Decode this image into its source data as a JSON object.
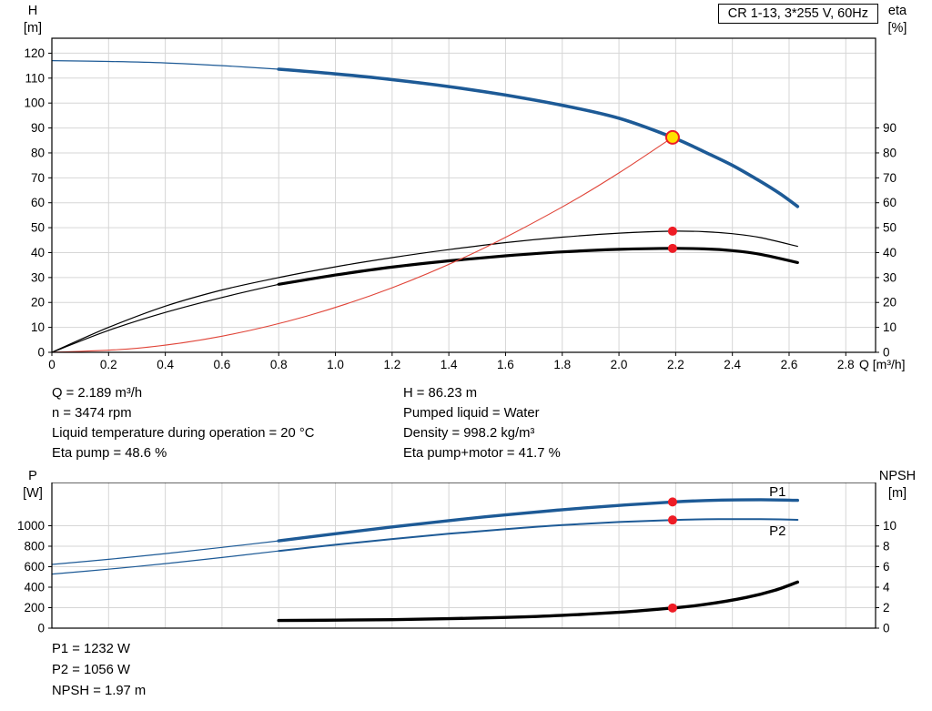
{
  "title_box": {
    "label": "CR 1-13, 3*255 V, 60Hz"
  },
  "x_axis_label": "Q [m³/h]",
  "axis_titles": {
    "top_left": [
      "H",
      "[m]"
    ],
    "top_right": [
      "eta",
      "[%]"
    ],
    "bottom_left": [
      "P",
      "[W]"
    ],
    "bottom_right": [
      "NPSH",
      "[m]"
    ]
  },
  "info_block": {
    "left": [
      "Q = 2.189 m³/h",
      "n = 3474 rpm",
      "Liquid temperature during operation = 20 °C",
      "Eta pump = 48.6 %"
    ],
    "right": [
      "H = 86.23 m",
      "Pumped liquid = Water",
      "Density = 998.2 kg/m³",
      "Eta pump+motor = 41.7 %"
    ]
  },
  "results_block": [
    "P1 = 1232 W",
    "P2 = 1056 W",
    "NPSH = 1.97 m"
  ],
  "colors": {
    "curve_blue": "#1d5a96",
    "curve_black": "#000000",
    "curve_red": "#e04438",
    "marker_red": "#ee1c25",
    "marker_yellow": "#ffe000",
    "grid": "#d6d6d6"
  },
  "chart_data": [
    {
      "type": "line",
      "title": "CR 1-13, 3*255 V, 60Hz",
      "xlabel": "Q [m³/h]",
      "ylabel_left": "H [m]",
      "ylabel_right": "eta [%]",
      "x_range": [
        0,
        2.905
      ],
      "y_range": [
        0,
        126
      ],
      "x_tick_values": [
        0,
        0.2,
        0.4,
        0.6,
        0.8,
        1.0,
        1.2,
        1.4,
        1.6,
        1.8,
        2.0,
        2.2,
        2.4,
        2.6,
        2.8
      ],
      "x_tick_labels": [
        "0",
        "0.2",
        "0.4",
        "0.6",
        "0.8",
        "1.0",
        "1.2",
        "1.4",
        "1.6",
        "1.8",
        "2.0",
        "2.2",
        "2.4",
        "2.6",
        "2.8"
      ],
      "y_tick_values_left": [
        0,
        10,
        20,
        30,
        40,
        50,
        60,
        70,
        80,
        90,
        100,
        110,
        120
      ],
      "y_tick_labels_left": [
        "0",
        "10",
        "20",
        "30",
        "40",
        "50",
        "60",
        "70",
        "80",
        "90",
        "100",
        "110",
        "120"
      ],
      "right_tick_values": [
        0,
        10,
        20,
        30,
        40,
        50,
        60,
        70,
        80,
        90
      ],
      "right_tick_labels": [
        "0",
        "10",
        "20",
        "30",
        "40",
        "50",
        "60",
        "70",
        "80",
        "90"
      ],
      "series": [
        {
          "name": "eta-pump-curve",
          "color": "#000000",
          "width": 1.2,
          "x": [
            0,
            0.2,
            0.4,
            0.6,
            0.8,
            1.0,
            1.2,
            1.4,
            1.6,
            1.8,
            2.0,
            2.189,
            2.3,
            2.4,
            2.5,
            2.63
          ],
          "y": [
            0,
            10,
            18.5,
            25,
            30,
            34.3,
            38,
            41.2,
            44,
            46.2,
            47.8,
            48.6,
            48.4,
            47.6,
            46,
            42.5
          ]
        },
        {
          "name": "eta-pump-motor-curve-thin",
          "color": "#000000",
          "width": 1.2,
          "x": [
            0,
            0.2,
            0.4,
            0.6,
            0.8
          ],
          "y": [
            0,
            8.8,
            16,
            22,
            27.3
          ]
        },
        {
          "name": "eta-pump-motor-curve",
          "color": "#000000",
          "width": 3.2,
          "x": [
            0.8,
            1.0,
            1.2,
            1.4,
            1.6,
            1.8,
            2.0,
            2.189,
            2.3,
            2.4,
            2.5,
            2.63
          ],
          "y": [
            27.3,
            31,
            34.2,
            36.7,
            38.7,
            40.3,
            41.3,
            41.7,
            41.5,
            40.8,
            39.3,
            36
          ]
        },
        {
          "name": "qh-curve-thin",
          "color": "#1d5a96",
          "width": 1.2,
          "x": [
            0,
            0.2,
            0.4,
            0.6,
            0.8
          ],
          "y": [
            117,
            116.7,
            116.1,
            115,
            113.6
          ]
        },
        {
          "name": "qh-curve",
          "color": "#1d5a96",
          "width": 3.6,
          "x": [
            0.8,
            1.0,
            1.2,
            1.4,
            1.6,
            1.8,
            2.0,
            2.189,
            2.3,
            2.4,
            2.5,
            2.57,
            2.63
          ],
          "y": [
            113.6,
            111.7,
            109.4,
            106.6,
            103.2,
            99.1,
            93.9,
            86.23,
            80.5,
            75,
            68.5,
            63.5,
            58.5
          ]
        },
        {
          "name": "duty-parabola",
          "color": "#e04438",
          "width": 1.1,
          "x": [
            0,
            0.3,
            0.6,
            0.9,
            1.2,
            1.5,
            1.8,
            2.0,
            2.189
          ],
          "y": [
            0,
            1.62,
            6.48,
            14.58,
            25.91,
            40.49,
            58.31,
            71.98,
            86.23
          ]
        }
      ],
      "markers": [
        {
          "name": "eta-pump-point",
          "x": 2.189,
          "y": 48.6,
          "r": 5,
          "fill": "#ee1c25"
        },
        {
          "name": "eta-pump-motor-point",
          "x": 2.189,
          "y": 41.7,
          "r": 5,
          "fill": "#ee1c25"
        },
        {
          "name": "duty-point",
          "x": 2.189,
          "y": 86.23,
          "r": 7,
          "fill": "#ffe000",
          "stroke": "#ee1c25",
          "stroke_width": 2
        }
      ],
      "labels": []
    },
    {
      "type": "line",
      "title": "",
      "xlabel": "Q [m³/h]",
      "ylabel_left": "P [W]",
      "ylabel_right": "NPSH [m]",
      "x_range": [
        0,
        2.905
      ],
      "y_range": [
        0,
        1422
      ],
      "x_tick_values": [
        0,
        0.2,
        0.4,
        0.6,
        0.8,
        1.0,
        1.2,
        1.4,
        1.6,
        1.8,
        2.0,
        2.2,
        2.4,
        2.6,
        2.8
      ],
      "x_tick_labels": [],
      "y_tick_values_left": [
        0,
        200,
        400,
        600,
        800,
        1000
      ],
      "y_tick_labels_left": [
        "0",
        "200",
        "400",
        "600",
        "800",
        "1000"
      ],
      "right_tick_values": [
        0,
        200,
        400,
        600,
        800,
        1000
      ],
      "right_tick_labels": [
        "0",
        "2",
        "4",
        "6",
        "8",
        "10"
      ],
      "series": [
        {
          "name": "p2-curve-thin",
          "color": "#1d5a96",
          "width": 1.2,
          "x": [
            0,
            0.2,
            0.4,
            0.6,
            0.8
          ],
          "y": [
            528,
            576,
            630,
            690,
            754
          ]
        },
        {
          "name": "p2-curve",
          "color": "#1d5a96",
          "width": 2,
          "x": [
            0.8,
            1.0,
            1.2,
            1.4,
            1.6,
            1.8,
            2.0,
            2.189,
            2.35,
            2.5,
            2.63
          ],
          "y": [
            754,
            814,
            870,
            922,
            966,
            1006,
            1036,
            1056,
            1064,
            1064,
            1058
          ]
        },
        {
          "name": "p1-curve-thin",
          "color": "#1d5a96",
          "width": 1.2,
          "x": [
            0,
            0.2,
            0.4,
            0.6,
            0.8
          ],
          "y": [
            622,
            672,
            728,
            788,
            852
          ]
        },
        {
          "name": "p1-curve",
          "color": "#1d5a96",
          "width": 3.4,
          "x": [
            0.8,
            1.0,
            1.2,
            1.4,
            1.6,
            1.8,
            2.0,
            2.189,
            2.35,
            2.5,
            2.63
          ],
          "y": [
            852,
            922,
            988,
            1050,
            1106,
            1156,
            1198,
            1232,
            1250,
            1254,
            1248
          ]
        },
        {
          "name": "npsh-curve",
          "color": "#000000",
          "width": 3.4,
          "y_scale": 100,
          "x": [
            0.8,
            1.0,
            1.2,
            1.4,
            1.6,
            1.8,
            2.0,
            2.189,
            2.3,
            2.45,
            2.55,
            2.63
          ],
          "y": [
            0.75,
            0.78,
            0.83,
            0.92,
            1.05,
            1.25,
            1.55,
            1.97,
            2.3,
            3.0,
            3.7,
            4.5
          ]
        }
      ],
      "markers": [
        {
          "name": "p1-point",
          "x": 2.189,
          "y": 1232,
          "r": 5,
          "fill": "#ee1c25"
        },
        {
          "name": "p2-point",
          "x": 2.189,
          "y": 1056,
          "r": 5,
          "fill": "#ee1c25"
        },
        {
          "name": "npsh-point",
          "x": 2.189,
          "y": 1.97,
          "y_scale": 100,
          "r": 5,
          "fill": "#ee1c25"
        }
      ],
      "labels": [
        {
          "text": "P1",
          "x": 2.53,
          "y": 1290,
          "color": "#1d5a96"
        },
        {
          "text": "P2",
          "x": 2.53,
          "y": 905,
          "color": "#1d5a96"
        }
      ]
    }
  ]
}
